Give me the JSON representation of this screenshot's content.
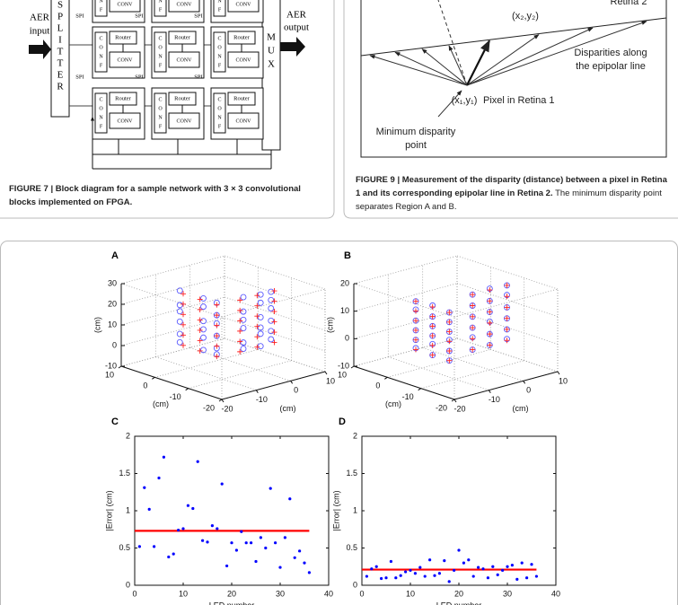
{
  "figure7": {
    "caption": "FIGURE 7 | Block diagram for a sample network with 3 × 3 convolutional blocks implemented on FPGA.",
    "diagram": {
      "input": [
        "AER",
        "input"
      ],
      "output": [
        "AER",
        "output"
      ],
      "splitter": [
        "S",
        "P",
        "L",
        "I",
        "T",
        "T",
        "E",
        "R"
      ],
      "mux": [
        "M",
        "U",
        "X"
      ],
      "spi": "SPI",
      "router": "Router",
      "conv": "CONV",
      "conf": [
        "C",
        "O",
        "N",
        "F"
      ]
    }
  },
  "figure9": {
    "retina2": "Retina 2",
    "point2": "(x₂,y₂)",
    "disparities": [
      "Disparities along",
      "the epipolar line"
    ],
    "point1": "(x₁,y₁)",
    "pixel": "Pixel in Retina 1",
    "minimum": [
      "Minimum disparity",
      "point"
    ],
    "caption_title": "FIGURE 9 | Measurement of the disparity (distance) between a pixel in Retina 1 and its corresponding epipolar line in Retina 2.",
    "caption_text": "The minimum disparity point separates Region A and B."
  },
  "chart_data": [
    {
      "type": "scatter3d",
      "label": "A",
      "xlim": [
        -20,
        10
      ],
      "xticks": [
        -20,
        -10,
        0,
        10
      ],
      "ylim": [
        -20,
        10
      ],
      "yticks": [
        -20,
        -10,
        0,
        10
      ],
      "zlim": [
        -10,
        30
      ],
      "zticks": [
        -10,
        0,
        10,
        20,
        30
      ],
      "xlabel": "(cm)",
      "ylabel": "(cm)",
      "zlabel": "(cm)",
      "grid": true,
      "series": [
        {
          "marker": "circle",
          "color": "#5a5aff",
          "columns": [
            {
              "x": 11,
              "y": -2,
              "z": [
                -7,
                -3,
                3,
                8,
                11,
                18
              ]
            },
            {
              "x": 5,
              "y": -1,
              "z": [
                -8,
                -2,
                2,
                6,
                13,
                17
              ]
            },
            {
              "x": 0,
              "y": -2,
              "z": [
                -7,
                -4,
                2,
                8,
                12,
                18
              ]
            },
            {
              "x": -10,
              "y": -4,
              "z": [
                2,
                5,
                12,
                16,
                20,
                27
              ]
            },
            {
              "x": -10,
              "y": 1,
              "z": [
                1,
                7,
                10,
                15,
                22,
                26
              ]
            },
            {
              "x": -9,
              "y": 5,
              "z": [
                2,
                6,
                11,
                17,
                21,
                25
              ]
            }
          ]
        },
        {
          "marker": "plus",
          "color": "#ff2020",
          "columns": [
            {
              "x": 10,
              "y": -2,
              "z": [
                -8,
                -3,
                2,
                7,
                12,
                17
              ]
            },
            {
              "x": 5,
              "y": -2,
              "z": [
                -8,
                -3,
                2,
                7,
                12,
                17
              ]
            },
            {
              "x": 0,
              "y": -2,
              "z": [
                -8,
                -3,
                2,
                7,
                12,
                17
              ]
            },
            {
              "x": -10,
              "y": -5,
              "z": [
                1,
                6,
                11,
                16,
                21,
                26
              ]
            },
            {
              "x": -10,
              "y": 0,
              "z": [
                1,
                6,
                11,
                16,
                21,
                26
              ]
            },
            {
              "x": -10,
              "y": 5,
              "z": [
                1,
                6,
                11,
                16,
                21,
                26
              ]
            }
          ]
        }
      ]
    },
    {
      "type": "scatter3d",
      "label": "B",
      "xlim": [
        -20,
        10
      ],
      "xticks": [
        -20,
        -10,
        0,
        10
      ],
      "ylim": [
        -20,
        10
      ],
      "yticks": [
        -20,
        -10,
        0,
        10
      ],
      "zlim": [
        -10,
        20
      ],
      "zticks": [
        -10,
        0,
        10,
        20
      ],
      "xlabel": "(cm)",
      "ylabel": "(cm)",
      "zlabel": "(cm)",
      "grid": true,
      "series": [
        {
          "marker": "circle",
          "color": "#5a5aff",
          "columns": [
            {
              "x": 10,
              "y": -2,
              "z": [
                -9.5,
                -6.5,
                -3,
                0.5,
                4.5,
                7.5
              ]
            },
            {
              "x": 5,
              "y": -2,
              "z": [
                -10,
                -6,
                -3,
                0.5,
                4,
                8
              ]
            },
            {
              "x": 0,
              "y": -2,
              "z": [
                -10,
                -6.5,
                -2.5,
                0.5,
                4,
                7.5
              ]
            },
            {
              "x": -10,
              "y": -5,
              "z": [
                -1,
                3.5,
                7,
                11,
                15,
                19
              ]
            },
            {
              "x": -10,
              "y": 0,
              "z": [
                -1,
                3,
                7.5,
                11,
                15,
                19.5
              ]
            },
            {
              "x": -10,
              "y": 5,
              "z": [
                -0.5,
                3,
                7,
                11,
                15.5,
                19
              ]
            }
          ]
        },
        {
          "marker": "plus",
          "color": "#ff2020",
          "columns": [
            {
              "x": 10,
              "y": -2,
              "z": [
                -10,
                -6.5,
                -3,
                0.5,
                4,
                7.5
              ]
            },
            {
              "x": 5,
              "y": -2,
              "z": [
                -10,
                -6.5,
                -3,
                0.5,
                4,
                7.5
              ]
            },
            {
              "x": 0,
              "y": -2,
              "z": [
                -10,
                -6.5,
                -3,
                0.5,
                4,
                7.5
              ]
            },
            {
              "x": -10,
              "y": -5,
              "z": [
                -1,
                3,
                7,
                11,
                15,
                19
              ]
            },
            {
              "x": -10,
              "y": 0,
              "z": [
                -1,
                3,
                7,
                11,
                15,
                19
              ]
            },
            {
              "x": -10,
              "y": 5,
              "z": [
                -1,
                3,
                7,
                11,
                15,
                19
              ]
            }
          ]
        }
      ]
    },
    {
      "type": "scatter",
      "label": "C",
      "xlabel": "LED number",
      "ylabel": "|Error| (cm)",
      "color": "#0000ff",
      "x": [
        1,
        2,
        3,
        4,
        5,
        6,
        7,
        8,
        9,
        10,
        11,
        12,
        13,
        14,
        15,
        16,
        17,
        18,
        19,
        20,
        21,
        22,
        23,
        24,
        25,
        26,
        27,
        28,
        29,
        30,
        31,
        32,
        33,
        34,
        35,
        36
      ],
      "values": [
        0.52,
        1.31,
        1.02,
        0.52,
        1.44,
        1.72,
        0.38,
        0.42,
        0.74,
        0.76,
        1.07,
        1.03,
        1.66,
        0.6,
        0.58,
        0.8,
        0.76,
        1.36,
        0.26,
        0.57,
        0.47,
        0.72,
        0.57,
        0.57,
        0.32,
        0.64,
        0.5,
        1.3,
        0.57,
        0.24,
        0.64,
        1.16,
        0.37,
        0.46,
        0.3,
        0.17
      ],
      "mean_line": {
        "value": 0.73,
        "x": [
          0,
          36
        ],
        "color": "#ff0000"
      },
      "xlim": [
        0,
        40
      ],
      "xticks": [
        0,
        10,
        20,
        30,
        40
      ],
      "ylim": [
        0,
        2
      ],
      "yticks": [
        0,
        0.5,
        1,
        1.5,
        2
      ]
    },
    {
      "type": "scatter",
      "label": "D",
      "xlabel": "LED number",
      "ylabel": "|Error| (cm)",
      "color": "#0000ff",
      "x": [
        1,
        2,
        3,
        4,
        5,
        6,
        7,
        8,
        9,
        10,
        11,
        12,
        13,
        14,
        15,
        16,
        17,
        18,
        19,
        20,
        21,
        22,
        23,
        24,
        25,
        26,
        27,
        28,
        29,
        30,
        31,
        32,
        33,
        34,
        35,
        36
      ],
      "values": [
        0.12,
        0.22,
        0.25,
        0.09,
        0.1,
        0.32,
        0.1,
        0.13,
        0.18,
        0.2,
        0.16,
        0.24,
        0.12,
        0.34,
        0.13,
        0.16,
        0.33,
        0.05,
        0.2,
        0.47,
        0.3,
        0.34,
        0.12,
        0.24,
        0.22,
        0.1,
        0.25,
        0.14,
        0.2,
        0.25,
        0.27,
        0.08,
        0.3,
        0.1,
        0.28,
        0.12
      ],
      "mean_line": {
        "value": 0.21,
        "x": [
          0,
          36
        ],
        "color": "#ff0000"
      },
      "xlim": [
        0,
        40
      ],
      "xticks": [
        0,
        10,
        20,
        30,
        40
      ],
      "ylim": [
        0,
        2
      ],
      "yticks": [
        0,
        0.5,
        1,
        1.5,
        2
      ]
    }
  ]
}
